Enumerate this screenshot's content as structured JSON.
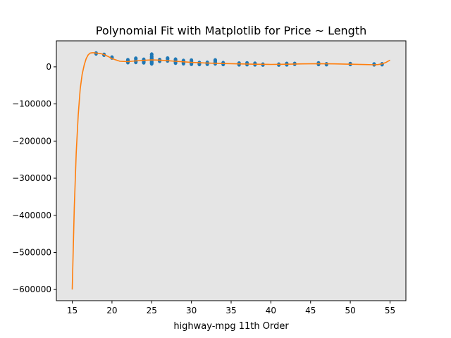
{
  "chart_data": {
    "type": "scatter",
    "title": "Polynomial Fit with Matplotlib for Price ~ Length",
    "xlabel": "highway-mpg 11th Order",
    "ylabel": "",
    "xlim": [
      13.0,
      57.0
    ],
    "ylim": [
      -630000,
      70000
    ],
    "xticks": [
      15,
      20,
      25,
      30,
      35,
      40,
      45,
      50,
      55
    ],
    "yticks": [
      0,
      -100000,
      -200000,
      -300000,
      -400000,
      -500000,
      -600000
    ],
    "ytick_labels": [
      "0",
      "−100000",
      "−200000",
      "−300000",
      "−400000",
      "−500000",
      "−600000"
    ],
    "background": "#e5e5e5",
    "grid": false,
    "series": [
      {
        "kind": "points",
        "color": "#1f77b4",
        "x": [
          18,
          19,
          20,
          22,
          22,
          22,
          23,
          23,
          23,
          24,
          24,
          24,
          24,
          25,
          25,
          25,
          25,
          25,
          25,
          25,
          26,
          26,
          27,
          27,
          28,
          28,
          28,
          29,
          29,
          29,
          30,
          30,
          30,
          31,
          31,
          32,
          32,
          33,
          33,
          33,
          34,
          34,
          36,
          36,
          37,
          37,
          38,
          38,
          39,
          41,
          42,
          42,
          43,
          46,
          46,
          47,
          50,
          53,
          54
        ],
        "y": [
          36000,
          32500,
          25000,
          18000,
          15000,
          12500,
          22000,
          16000,
          13000,
          19000,
          15500,
          12000,
          17500,
          33000,
          27000,
          21000,
          16000,
          12000,
          9000,
          23000,
          18500,
          16000,
          22500,
          17000,
          19500,
          14000,
          11000,
          16000,
          12500,
          9500,
          17000,
          12000,
          8000,
          10500,
          7500,
          11000,
          8000,
          17500,
          12500,
          9000,
          10000,
          7500,
          9000,
          6500,
          9500,
          7000,
          8500,
          6500,
          6000,
          6000,
          8000,
          6500,
          8000,
          9500,
          7500,
          7000,
          7500,
          6500,
          7000
        ]
      },
      {
        "kind": "line",
        "color": "#ff7f0e",
        "x": [
          15.0,
          15.25,
          15.5,
          15.75,
          16.0,
          16.25,
          16.5,
          16.75,
          17.0,
          17.25,
          17.5,
          17.75,
          18.0,
          18.5,
          19.0,
          19.5,
          20.0,
          21.0,
          22.0,
          23.0,
          24.0,
          25.0,
          26.0,
          28.0,
          30.0,
          32.0,
          34.0,
          36.0,
          38.0,
          40.0,
          42.0,
          44.0,
          46.0,
          48.0,
          50.0,
          52.0,
          53.0,
          53.5,
          54.0,
          54.5,
          55.0
        ],
        "y": [
          -600000,
          -380000,
          -230000,
          -130000,
          -60000,
          -20000,
          5000,
          22000,
          32000,
          37000,
          38000,
          38000,
          37000,
          36000,
          33000,
          28000,
          22000,
          15000,
          14000,
          16000,
          17500,
          18500,
          18000,
          15000,
          12000,
          10000,
          9000,
          8000,
          7000,
          6500,
          7000,
          8000,
          8500,
          8000,
          7000,
          6000,
          5500,
          6000,
          8000,
          12000,
          18000
        ]
      }
    ]
  }
}
